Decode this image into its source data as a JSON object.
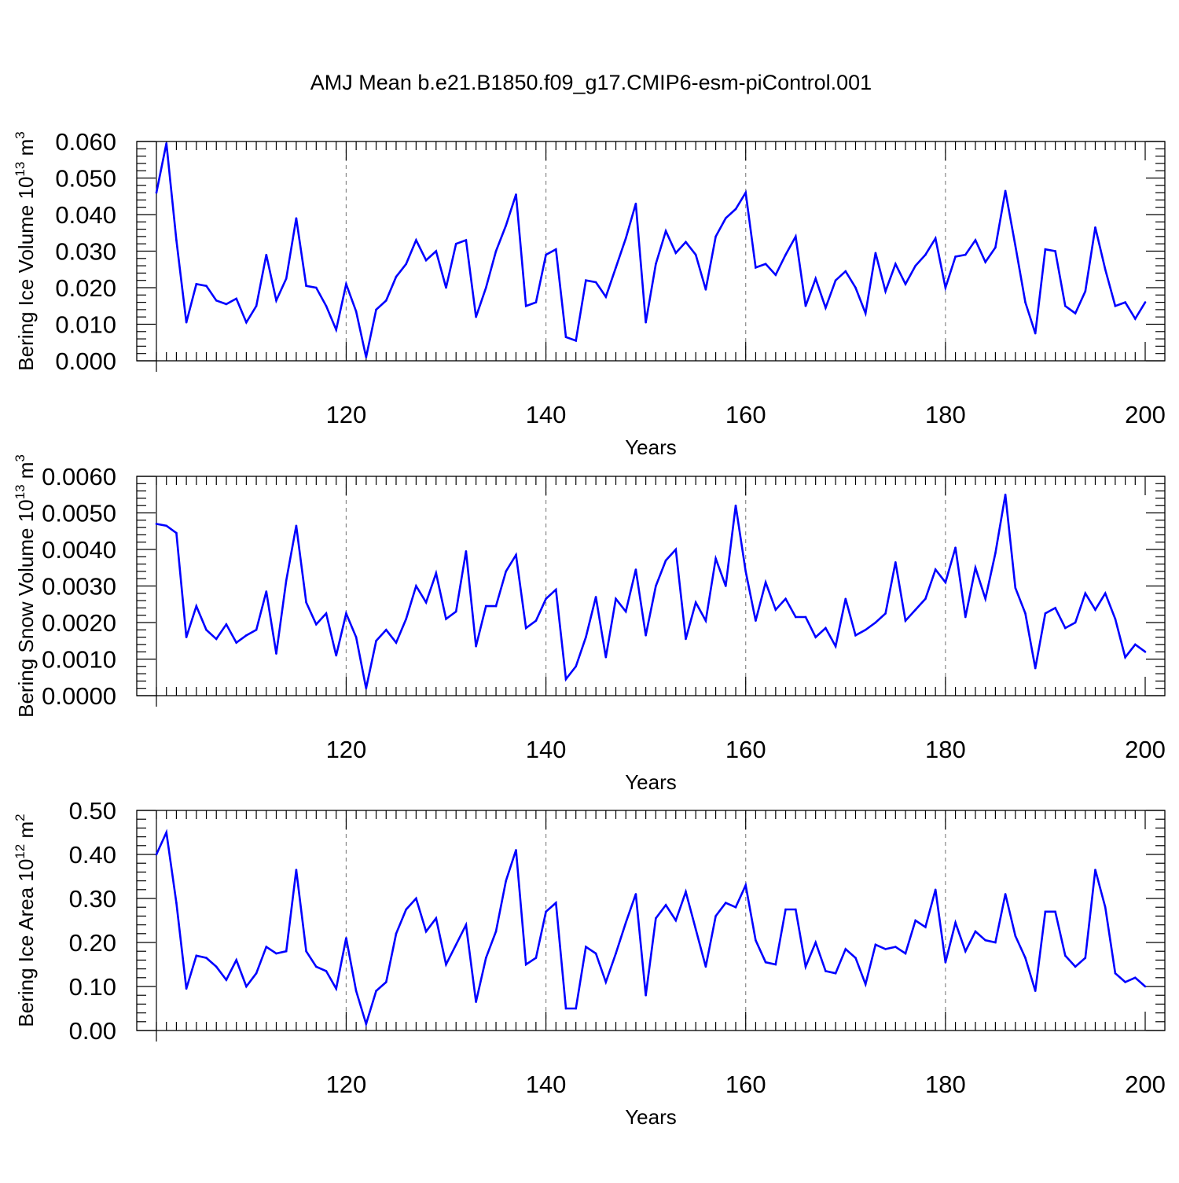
{
  "title": "AMJ Mean b.e21.B1850.f09_g17.CMIP6-esm-piControl.001",
  "colors": {
    "series": "#0000ff",
    "axis": "#000000",
    "grid": "#888888",
    "background": "#ffffff"
  },
  "chart_data": [
    {
      "type": "line",
      "ylabel": {
        "main": "Bering Ice Volume 10",
        "sup": "13",
        "unit": " m",
        "unit_sup": "3"
      },
      "xlabel": "Years",
      "xlim": [
        101,
        200
      ],
      "ylim": [
        0,
        0.06
      ],
      "yticks": [
        "0.000",
        "0.010",
        "0.020",
        "0.030",
        "0.040",
        "0.050",
        "0.060"
      ],
      "xticks": [
        "120",
        "140",
        "160",
        "180",
        "200"
      ],
      "x": [
        101,
        102,
        103,
        104,
        105,
        106,
        107,
        108,
        109,
        110,
        111,
        112,
        113,
        114,
        115,
        116,
        117,
        118,
        119,
        120,
        121,
        122,
        123,
        124,
        125,
        126,
        127,
        128,
        129,
        130,
        131,
        132,
        133,
        134,
        135,
        136,
        137,
        138,
        139,
        140,
        141,
        142,
        143,
        144,
        145,
        146,
        147,
        148,
        149,
        150,
        151,
        152,
        153,
        154,
        155,
        156,
        157,
        158,
        159,
        160,
        161,
        162,
        163,
        164,
        165,
        166,
        167,
        168,
        169,
        170,
        171,
        172,
        173,
        174,
        175,
        176,
        177,
        178,
        179,
        180,
        181,
        182,
        183,
        184,
        185,
        186,
        187,
        188,
        189,
        190,
        191,
        192,
        193,
        194,
        195,
        196,
        197,
        198,
        199,
        200
      ],
      "values": [
        0.046,
        0.0595,
        0.033,
        0.0105,
        0.021,
        0.0205,
        0.0165,
        0.0155,
        0.017,
        0.0105,
        0.015,
        0.029,
        0.0165,
        0.0225,
        0.039,
        0.0205,
        0.02,
        0.015,
        0.0085,
        0.021,
        0.0135,
        0.001,
        0.014,
        0.0165,
        0.023,
        0.0265,
        0.033,
        0.0275,
        0.03,
        0.02,
        0.032,
        0.033,
        0.012,
        0.02,
        0.03,
        0.037,
        0.0455,
        0.015,
        0.016,
        0.029,
        0.0305,
        0.0065,
        0.0055,
        0.022,
        0.0215,
        0.0175,
        0.0255,
        0.0335,
        0.043,
        0.0105,
        0.0265,
        0.0355,
        0.0295,
        0.0325,
        0.029,
        0.0195,
        0.034,
        0.039,
        0.0415,
        0.046,
        0.0255,
        0.0265,
        0.0235,
        0.029,
        0.034,
        0.015,
        0.0225,
        0.0145,
        0.022,
        0.0245,
        0.02,
        0.013,
        0.0295,
        0.019,
        0.0265,
        0.021,
        0.026,
        0.029,
        0.0335,
        0.02,
        0.0285,
        0.029,
        0.033,
        0.027,
        0.031,
        0.0465,
        0.0315,
        0.016,
        0.0075,
        0.0305,
        0.03,
        0.015,
        0.013,
        0.019,
        0.0365,
        0.025,
        0.015,
        0.016,
        0.0115,
        0.016
      ]
    },
    {
      "type": "line",
      "ylabel": {
        "main": "Bering Snow Volume 10",
        "sup": "13",
        "unit": " m",
        "unit_sup": "3"
      },
      "xlabel": "Years",
      "xlim": [
        101,
        200
      ],
      "ylim": [
        0,
        0.006
      ],
      "yticks": [
        "0.0000",
        "0.0010",
        "0.0020",
        "0.0030",
        "0.0040",
        "0.0050",
        "0.0060"
      ],
      "xticks": [
        "120",
        "140",
        "160",
        "180",
        "200"
      ],
      "x": [
        101,
        102,
        103,
        104,
        105,
        106,
        107,
        108,
        109,
        110,
        111,
        112,
        113,
        114,
        115,
        116,
        117,
        118,
        119,
        120,
        121,
        122,
        123,
        124,
        125,
        126,
        127,
        128,
        129,
        130,
        131,
        132,
        133,
        134,
        135,
        136,
        137,
        138,
        139,
        140,
        141,
        142,
        143,
        144,
        145,
        146,
        147,
        148,
        149,
        150,
        151,
        152,
        153,
        154,
        155,
        156,
        157,
        158,
        159,
        160,
        161,
        162,
        163,
        164,
        165,
        166,
        167,
        168,
        169,
        170,
        171,
        172,
        173,
        174,
        175,
        176,
        177,
        178,
        179,
        180,
        181,
        182,
        183,
        184,
        185,
        186,
        187,
        188,
        189,
        190,
        191,
        192,
        193,
        194,
        195,
        196,
        197,
        198,
        199,
        200
      ],
      "values": [
        0.0047,
        0.00465,
        0.00445,
        0.0016,
        0.00245,
        0.0018,
        0.00155,
        0.00195,
        0.00145,
        0.00165,
        0.0018,
        0.00285,
        0.00115,
        0.00315,
        0.00465,
        0.00255,
        0.00195,
        0.00225,
        0.0011,
        0.00225,
        0.0016,
        0.0002,
        0.0015,
        0.0018,
        0.00145,
        0.0021,
        0.003,
        0.00255,
        0.00335,
        0.0021,
        0.0023,
        0.00395,
        0.00135,
        0.00245,
        0.00245,
        0.0034,
        0.00385,
        0.00185,
        0.00205,
        0.00265,
        0.0029,
        0.00045,
        0.0008,
        0.0016,
        0.0027,
        0.00105,
        0.00265,
        0.0023,
        0.00345,
        0.00165,
        0.003,
        0.0037,
        0.004,
        0.00155,
        0.00255,
        0.00205,
        0.00375,
        0.003,
        0.0052,
        0.0034,
        0.00205,
        0.0031,
        0.00235,
        0.00265,
        0.00215,
        0.00215,
        0.0016,
        0.00185,
        0.00135,
        0.00265,
        0.00165,
        0.0018,
        0.002,
        0.00225,
        0.00365,
        0.00205,
        0.00235,
        0.00265,
        0.00345,
        0.0031,
        0.00405,
        0.00215,
        0.0035,
        0.00265,
        0.0039,
        0.0055,
        0.00295,
        0.00225,
        0.00075,
        0.00225,
        0.0024,
        0.00185,
        0.002,
        0.0028,
        0.00235,
        0.0028,
        0.0021,
        0.00105,
        0.0014,
        0.0012
      ]
    },
    {
      "type": "line",
      "ylabel": {
        "main": "Bering Ice Area 10",
        "sup": "12",
        "unit": " m",
        "unit_sup": "2"
      },
      "xlabel": "Years",
      "xlim": [
        101,
        200
      ],
      "ylim": [
        0,
        0.5
      ],
      "yticks": [
        "0.00",
        "0.10",
        "0.20",
        "0.30",
        "0.40",
        "0.50"
      ],
      "xticks": [
        "120",
        "140",
        "160",
        "180",
        "200"
      ],
      "x": [
        101,
        102,
        103,
        104,
        105,
        106,
        107,
        108,
        109,
        110,
        111,
        112,
        113,
        114,
        115,
        116,
        117,
        118,
        119,
        120,
        121,
        122,
        123,
        124,
        125,
        126,
        127,
        128,
        129,
        130,
        131,
        132,
        133,
        134,
        135,
        136,
        137,
        138,
        139,
        140,
        141,
        142,
        143,
        144,
        145,
        146,
        147,
        148,
        149,
        150,
        151,
        152,
        153,
        154,
        155,
        156,
        157,
        158,
        159,
        160,
        161,
        162,
        163,
        164,
        165,
        166,
        167,
        168,
        169,
        170,
        171,
        172,
        173,
        174,
        175,
        176,
        177,
        178,
        179,
        180,
        181,
        182,
        183,
        184,
        185,
        186,
        187,
        188,
        189,
        190,
        191,
        192,
        193,
        194,
        195,
        196,
        197,
        198,
        199,
        200
      ],
      "values": [
        0.4,
        0.45,
        0.29,
        0.095,
        0.17,
        0.165,
        0.145,
        0.115,
        0.16,
        0.1,
        0.13,
        0.19,
        0.175,
        0.18,
        0.365,
        0.18,
        0.145,
        0.135,
        0.095,
        0.21,
        0.09,
        0.015,
        0.09,
        0.11,
        0.22,
        0.275,
        0.3,
        0.225,
        0.255,
        0.15,
        0.195,
        0.24,
        0.065,
        0.165,
        0.225,
        0.34,
        0.41,
        0.15,
        0.165,
        0.27,
        0.29,
        0.05,
        0.05,
        0.19,
        0.175,
        0.11,
        0.175,
        0.245,
        0.31,
        0.08,
        0.255,
        0.285,
        0.25,
        0.315,
        0.23,
        0.145,
        0.26,
        0.29,
        0.28,
        0.33,
        0.205,
        0.155,
        0.15,
        0.275,
        0.275,
        0.145,
        0.2,
        0.135,
        0.13,
        0.185,
        0.165,
        0.105,
        0.195,
        0.185,
        0.19,
        0.175,
        0.25,
        0.235,
        0.32,
        0.155,
        0.245,
        0.18,
        0.225,
        0.205,
        0.2,
        0.31,
        0.215,
        0.165,
        0.09,
        0.27,
        0.27,
        0.17,
        0.145,
        0.165,
        0.365,
        0.28,
        0.13,
        0.11,
        0.12,
        0.1
      ]
    }
  ]
}
